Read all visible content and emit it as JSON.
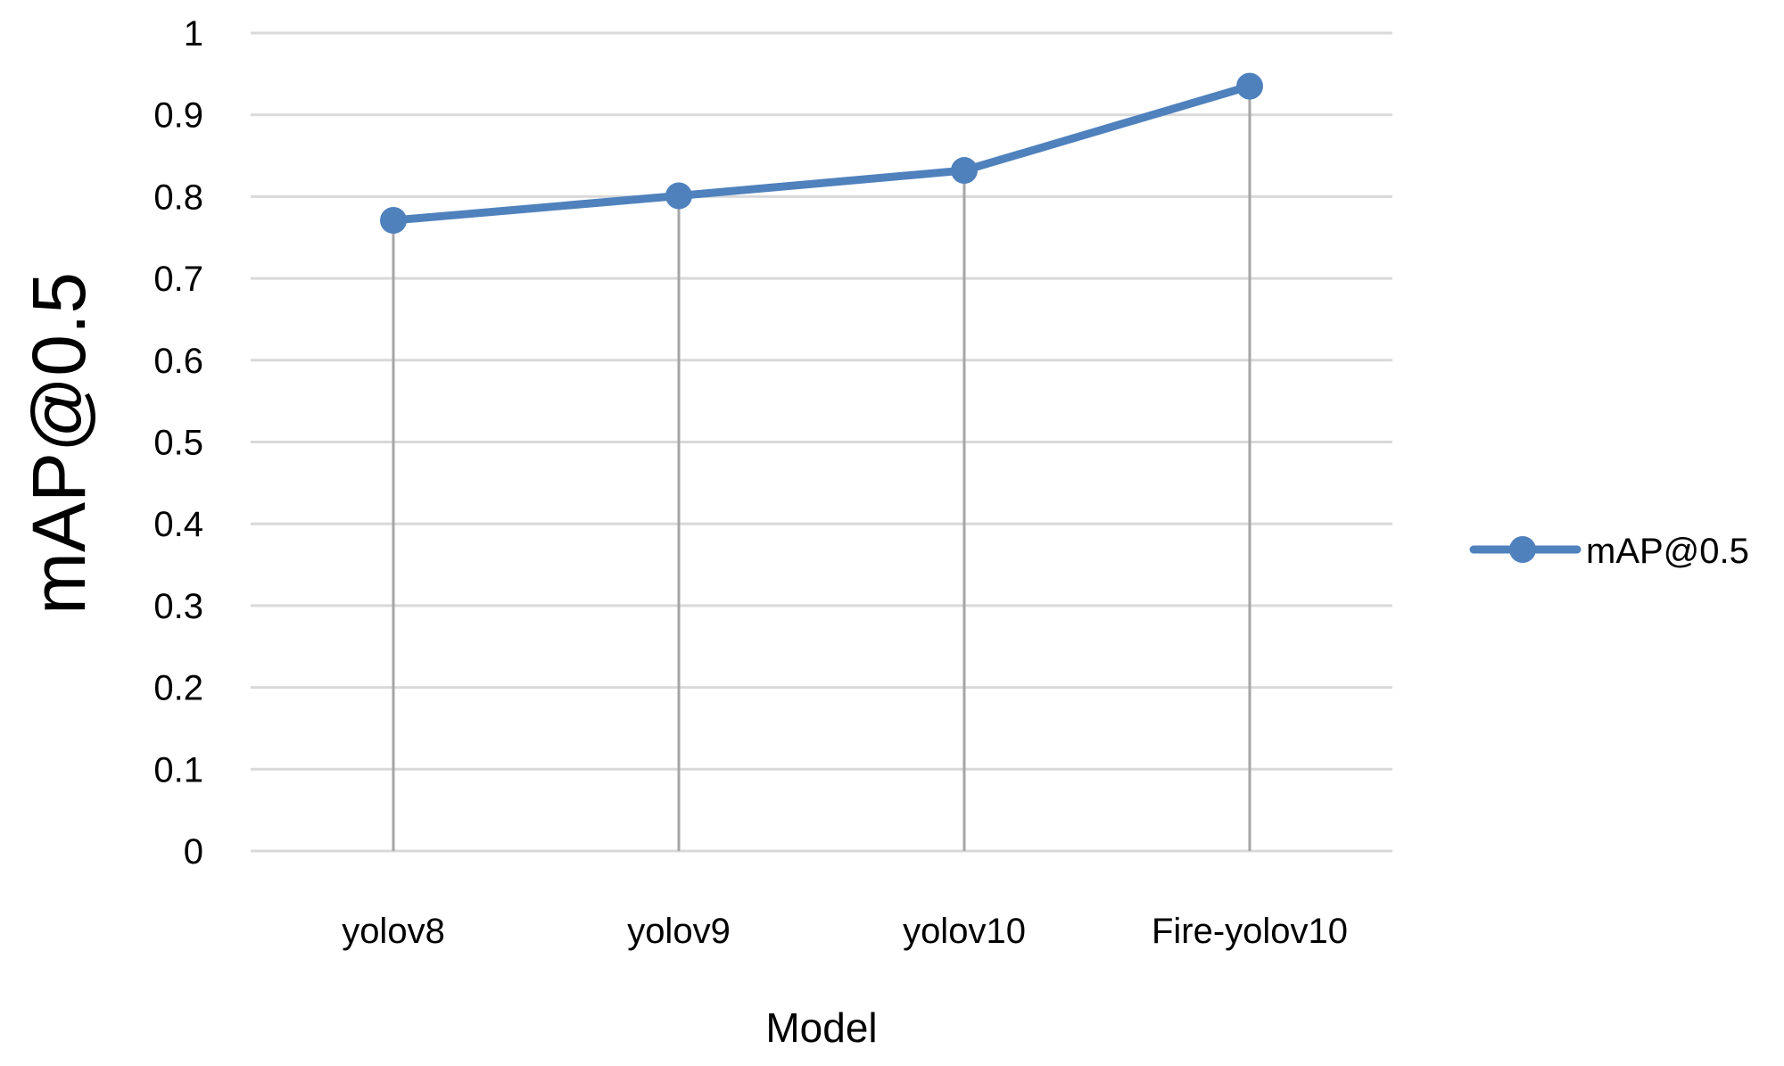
{
  "chart_data": {
    "type": "line",
    "title": "",
    "xlabel": "Model",
    "ylabel": "mAP@0.5",
    "categories": [
      "yolov8",
      "yolov9",
      "yolov10",
      "Fire-yolov10"
    ],
    "series": [
      {
        "name": "mAP@0.5",
        "values": [
          0.771,
          0.801,
          0.832,
          0.935
        ],
        "color": "#4f81bd"
      }
    ],
    "ylim": [
      0,
      1
    ],
    "yticks": [
      "0",
      "0.1",
      "0.2",
      "0.3",
      "0.4",
      "0.5",
      "0.6",
      "0.7",
      "0.8",
      "0.9",
      "1"
    ],
    "grid": true,
    "drop_lines": true,
    "legend_position": "right"
  }
}
